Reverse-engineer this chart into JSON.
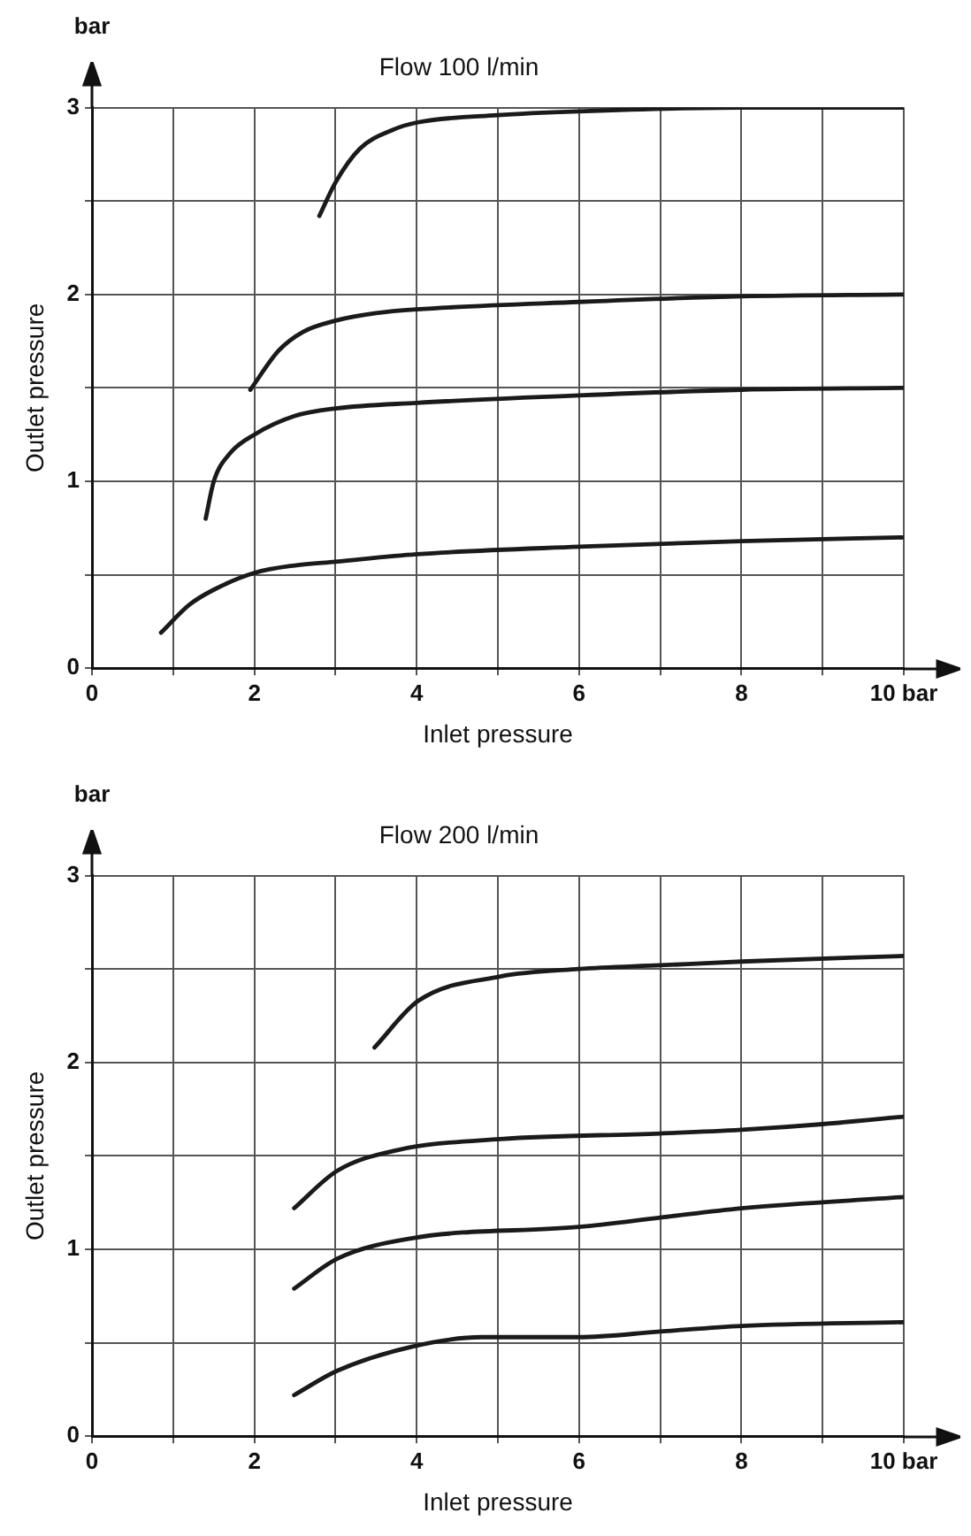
{
  "chart_data": [
    {
      "type": "line",
      "title": "Flow 100 l/min",
      "xlabel": "Inlet pressure",
      "ylabel": "Outlet pressure",
      "annotations": [
        "bar"
      ],
      "marker": "none",
      "grid": true,
      "legend": false,
      "xlim": [
        0,
        10
      ],
      "ylim": [
        0,
        3
      ],
      "xticks": [
        0,
        {
          "value": 1,
          "label": null
        },
        2,
        {
          "value": 3,
          "label": null
        },
        4,
        {
          "value": 5,
          "label": null
        },
        6,
        {
          "value": 7,
          "label": null
        },
        8,
        {
          "value": 9,
          "label": null
        },
        {
          "value": 10,
          "label": "10 bar"
        }
      ],
      "yticks": [
        0,
        {
          "value": 0.5,
          "label": null
        },
        1,
        {
          "value": 1.5,
          "label": null
        },
        2,
        {
          "value": 2.5,
          "label": null
        },
        3
      ],
      "series": [
        {
          "color": "#1a1a1a",
          "x": [
            2.8,
            3.0,
            3.3,
            3.7,
            4,
            5,
            6,
            8,
            10
          ],
          "values": [
            2.42,
            2.6,
            2.78,
            2.88,
            2.92,
            2.96,
            2.98,
            3.0,
            3.0
          ]
        },
        {
          "color": "#1a1a1a",
          "x": [
            1.95,
            2.3,
            2.6,
            3,
            3.5,
            4,
            6,
            8,
            10
          ],
          "values": [
            1.49,
            1.7,
            1.8,
            1.86,
            1.9,
            1.92,
            1.96,
            1.99,
            2.0
          ]
        },
        {
          "color": "#1a1a1a",
          "x": [
            1.4,
            1.5,
            1.7,
            2,
            2.5,
            3,
            4,
            6,
            8,
            10
          ],
          "values": [
            0.8,
            1.0,
            1.15,
            1.25,
            1.35,
            1.39,
            1.42,
            1.46,
            1.49,
            1.5
          ]
        },
        {
          "color": "#1a1a1a",
          "x": [
            0.85,
            1.2,
            1.5,
            2,
            2.5,
            3,
            4,
            6,
            8,
            10
          ],
          "values": [
            0.19,
            0.34,
            0.42,
            0.51,
            0.55,
            0.57,
            0.61,
            0.65,
            0.68,
            0.7
          ]
        }
      ]
    },
    {
      "type": "line",
      "title": "Flow 200 l/min",
      "xlabel": "Inlet pressure",
      "ylabel": "Outlet pressure",
      "annotations": [
        "bar"
      ],
      "marker": "none",
      "grid": true,
      "legend": false,
      "xlim": [
        0,
        10
      ],
      "ylim": [
        0,
        3
      ],
      "xticks": [
        0,
        {
          "value": 1,
          "label": null
        },
        2,
        {
          "value": 3,
          "label": null
        },
        4,
        {
          "value": 5,
          "label": null
        },
        6,
        {
          "value": 7,
          "label": null
        },
        8,
        {
          "value": 9,
          "label": null
        },
        {
          "value": 10,
          "label": "10 bar"
        }
      ],
      "yticks": [
        0,
        {
          "value": 0.5,
          "label": null
        },
        1,
        {
          "value": 1.5,
          "label": null
        },
        2,
        {
          "value": 2.5,
          "label": null
        },
        3
      ],
      "series": [
        {
          "color": "#1a1a1a",
          "x": [
            3.48,
            4.02,
            5.03,
            6,
            7,
            8,
            10
          ],
          "values": [
            2.08,
            2.33,
            2.46,
            2.5,
            2.52,
            2.54,
            2.57
          ]
        },
        {
          "color": "#1a1a1a",
          "x": [
            2.49,
            3.02,
            3.75,
            5.03,
            7,
            8,
            9,
            10
          ],
          "values": [
            1.22,
            1.42,
            1.53,
            1.59,
            1.62,
            1.64,
            1.67,
            1.71
          ]
        },
        {
          "color": "#1a1a1a",
          "x": [
            2.49,
            3.02,
            3.95,
            6,
            7,
            8,
            10
          ],
          "values": [
            0.79,
            0.95,
            1.06,
            1.12,
            1.17,
            1.22,
            1.28
          ]
        },
        {
          "color": "#1a1a1a",
          "x": [
            2.49,
            3.02,
            3.95,
            4.8,
            6,
            7,
            8,
            10
          ],
          "values": [
            0.22,
            0.35,
            0.48,
            0.53,
            0.53,
            0.56,
            0.59,
            0.61
          ]
        }
      ]
    }
  ]
}
